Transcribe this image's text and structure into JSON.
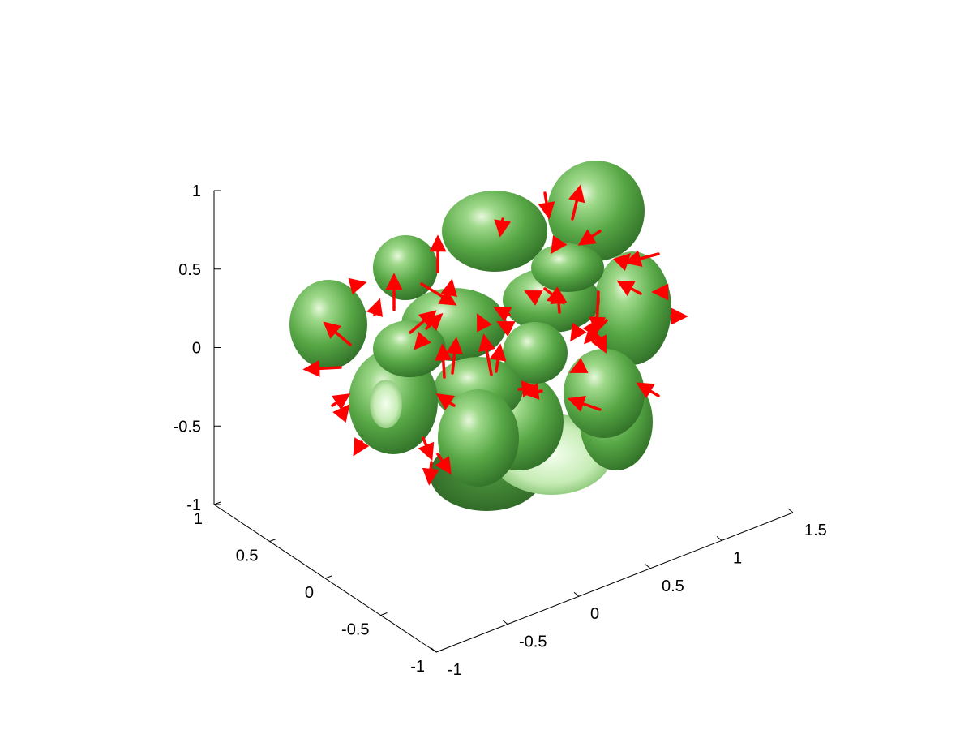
{
  "figure": {
    "background_color": "#ffffff"
  },
  "chart_data": {
    "type": "3d-isosurface-with-vectors",
    "title": "",
    "xlabel": "",
    "ylabel": "",
    "zlabel": "",
    "grid": false,
    "xlim": [
      -1,
      1.5
    ],
    "ylim": [
      -1,
      1
    ],
    "zlim": [
      -1,
      1
    ],
    "x_ticks": [
      "-1",
      "-0.5",
      "0",
      "0.5",
      "1",
      "1.5"
    ],
    "y_ticks": [
      "-1",
      "-0.5",
      "0",
      "0.5",
      "1"
    ],
    "z_ticks": [
      "-1",
      "-0.5",
      "0",
      "0.5",
      "1"
    ],
    "surface": {
      "color": "#5aa84a",
      "highlight": "#e6f7d8",
      "shadow": "#2e6a26"
    },
    "vectors": {
      "color": "#ff0000"
    }
  }
}
